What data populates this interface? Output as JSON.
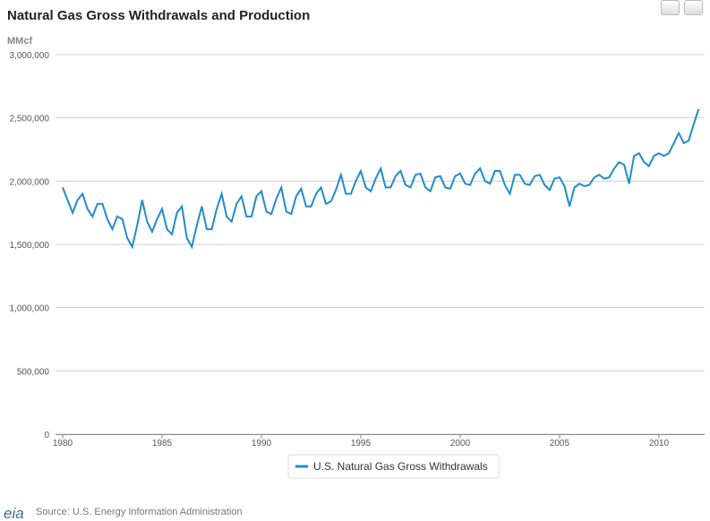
{
  "chart_data": {
    "type": "line",
    "title": "Natural Gas Gross Withdrawals and Production",
    "y_unit": "MMcf",
    "source": "Source: U.S. Energy Information Administration",
    "logo": "eia",
    "xlim": [
      1979.64,
      2012.3
    ],
    "xticks": [
      1980,
      1985,
      1990,
      1995,
      2000,
      2005,
      2010
    ],
    "ylim": [
      0,
      3000000
    ],
    "yticks": [
      0,
      {
        "value": 500000,
        "label": "500,000"
      },
      {
        "value": 1000000,
        "label": "1,000,000"
      },
      {
        "value": 1500000,
        "label": "1,500,000"
      },
      {
        "value": 2000000,
        "label": "2,000,000"
      },
      {
        "value": 2500000,
        "label": "2,500,000"
      },
      {
        "value": 3000000,
        "label": "3,000,000"
      }
    ],
    "grid": true,
    "legend": "bottom",
    "x": [
      1980,
      1980.25,
      1980.5,
      1980.75,
      1981,
      1981.25,
      1981.5,
      1981.75,
      1982,
      1982.25,
      1982.5,
      1982.75,
      1983,
      1983.25,
      1983.5,
      1983.75,
      1984,
      1984.25,
      1984.5,
      1984.75,
      1985,
      1985.25,
      1985.5,
      1985.75,
      1986,
      1986.25,
      1986.5,
      1986.75,
      1987,
      1987.25,
      1987.5,
      1987.75,
      1988,
      1988.25,
      1988.5,
      1988.75,
      1989,
      1989.25,
      1989.5,
      1989.75,
      1990,
      1990.25,
      1990.5,
      1990.75,
      1991,
      1991.25,
      1991.5,
      1991.75,
      1992,
      1992.25,
      1992.5,
      1992.75,
      1993,
      1993.25,
      1993.5,
      1993.75,
      1994,
      1994.25,
      1994.5,
      1994.75,
      1995,
      1995.25,
      1995.5,
      1995.75,
      1996,
      1996.25,
      1996.5,
      1996.75,
      1997,
      1997.25,
      1997.5,
      1997.75,
      1998,
      1998.25,
      1998.5,
      1998.75,
      1999,
      1999.25,
      1999.5,
      1999.75,
      2000,
      2000.25,
      2000.5,
      2000.75,
      2001,
      2001.25,
      2001.5,
      2001.75,
      2002,
      2002.25,
      2002.5,
      2002.75,
      2003,
      2003.25,
      2003.5,
      2003.75,
      2004,
      2004.25,
      2004.5,
      2004.75,
      2005,
      2005.25,
      2005.5,
      2005.75,
      2006,
      2006.25,
      2006.5,
      2006.75,
      2007,
      2007.25,
      2007.5,
      2007.75,
      2008,
      2008.25,
      2008.5,
      2008.75,
      2009,
      2009.25,
      2009.5,
      2009.75,
      2010,
      2010.25,
      2010.5,
      2010.75,
      2011,
      2011.25,
      2011.5,
      2011.75,
      2012
    ],
    "series": [
      {
        "name": "U.S. Natural Gas Gross Withdrawals",
        "color": "#1f8dc9",
        "values": [
          1950000,
          1850000,
          1750000,
          1850000,
          1900000,
          1780000,
          1720000,
          1820000,
          1820000,
          1700000,
          1620000,
          1720000,
          1700000,
          1550000,
          1480000,
          1650000,
          1850000,
          1680000,
          1600000,
          1700000,
          1780000,
          1620000,
          1580000,
          1750000,
          1800000,
          1550000,
          1480000,
          1650000,
          1800000,
          1620000,
          1620000,
          1780000,
          1900000,
          1720000,
          1680000,
          1820000,
          1880000,
          1720000,
          1720000,
          1880000,
          1920000,
          1760000,
          1740000,
          1860000,
          1950000,
          1760000,
          1740000,
          1880000,
          1940000,
          1800000,
          1800000,
          1900000,
          1950000,
          1820000,
          1840000,
          1930000,
          2050000,
          1900000,
          1900000,
          2000000,
          2080000,
          1950000,
          1920000,
          2020000,
          2100000,
          1950000,
          1950000,
          2040000,
          2080000,
          1970000,
          1950000,
          2050000,
          2060000,
          1950000,
          1920000,
          2030000,
          2040000,
          1950000,
          1940000,
          2040000,
          2060000,
          1980000,
          1970000,
          2060000,
          2100000,
          2000000,
          1980000,
          2080000,
          2080000,
          1970000,
          1900000,
          2050000,
          2050000,
          1980000,
          1970000,
          2040000,
          2050000,
          1970000,
          1930000,
          2020000,
          2030000,
          1960000,
          1800000,
          1950000,
          1980000,
          1960000,
          1970000,
          2030000,
          2050000,
          2020000,
          2030000,
          2100000,
          2150000,
          2130000,
          1980000,
          2200000,
          2220000,
          2150000,
          2120000,
          2200000,
          2220000,
          2200000,
          2220000,
          2300000,
          2380000,
          2300000,
          2320000,
          2450000,
          2570000
        ]
      }
    ]
  }
}
